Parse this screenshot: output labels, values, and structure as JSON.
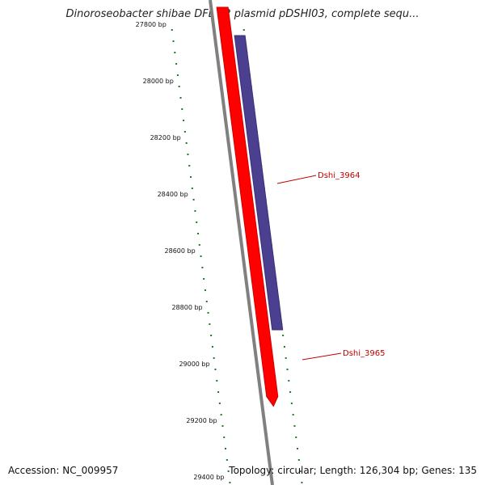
{
  "title": "Dinoroseobacter shibae DFL 12 plasmid pDSHI03, complete sequ...",
  "accession": "Accession: NC_009957",
  "summary": "Topology: circular; Length: 126,304 bp; Genes: 135",
  "colors": {
    "backbone": "#808080",
    "forward_gene": "#ff0000",
    "reverse_gene": "#4b3f8f",
    "tick": "#1e7a1e",
    "label": "#c00000"
  },
  "ticks": [
    {
      "bp": 27800,
      "label": "27800 bp"
    },
    {
      "bp": 28000,
      "label": "28000 bp"
    },
    {
      "bp": 28200,
      "label": "28200 bp"
    },
    {
      "bp": 28400,
      "label": "28400 bp"
    },
    {
      "bp": 28600,
      "label": "28600 bp"
    },
    {
      "bp": 28800,
      "label": "28800 bp"
    },
    {
      "bp": 29000,
      "label": "29000 bp"
    },
    {
      "bp": 29200,
      "label": "29200 bp"
    },
    {
      "bp": 29400,
      "label": "29400 bp"
    }
  ],
  "genes": [
    {
      "name": "Dshi_3964",
      "strand": "reverse",
      "start": 27840,
      "end": 28880
    },
    {
      "name": "Dshi_3965",
      "strand": "forward",
      "start": 27740,
      "end": 29150
    }
  ]
}
